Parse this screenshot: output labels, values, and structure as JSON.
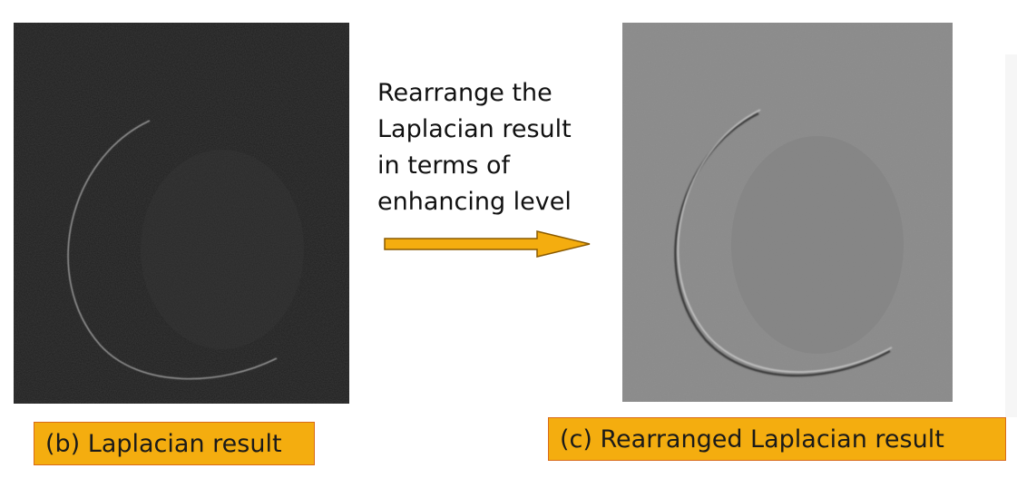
{
  "description_lines": [
    "Rearrange the",
    "Laplacian result",
    "in terms of",
    "enhancing level"
  ],
  "captions": {
    "left": "(b) Laplacian result",
    "right": "(c) Rearranged Laplacian result"
  },
  "colors": {
    "caption_fill": "#f4ad0f",
    "caption_border": "#d96a18",
    "arrow_fill": "#f4ad0f",
    "arrow_stroke": "#8a5a00",
    "left_image_bg": "#1e1e1e",
    "right_image_bg": "#8c8c8c"
  },
  "icons": {
    "arrow": "right-arrow-icon"
  }
}
